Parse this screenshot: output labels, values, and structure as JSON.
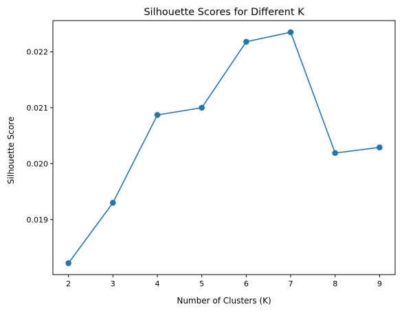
{
  "chart_data": {
    "type": "line",
    "title": "Silhouette Scores for Different K",
    "xlabel": "Number of Clusters (K)",
    "ylabel": "Silhouette Score",
    "x": [
      2,
      3,
      4,
      5,
      6,
      7,
      8,
      9
    ],
    "series": [
      {
        "values": [
          0.01822,
          0.0193,
          0.02087,
          0.021,
          0.02218,
          0.02235,
          0.02019,
          0.02029
        ],
        "color": "#1f77b4",
        "marker": "circle"
      }
    ],
    "xticks": [
      "2",
      "3",
      "4",
      "5",
      "6",
      "7",
      "8",
      "9"
    ],
    "yticks": [
      "0.019",
      "0.020",
      "0.021",
      "0.022"
    ],
    "ytick_values": [
      0.019,
      0.02,
      0.021,
      0.022
    ],
    "xlim": [
      1.65,
      9.35
    ],
    "ylim": [
      0.018015,
      0.022558
    ],
    "grid": false,
    "legend": "none"
  }
}
